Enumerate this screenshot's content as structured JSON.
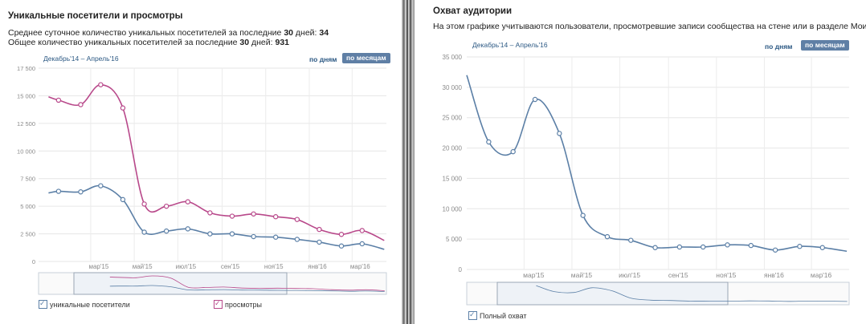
{
  "left": {
    "title": "Уникальные посетители и просмотры",
    "stat1_label": "Среднее суточное количество уникальных посетителей за последние",
    "stat1_days": "30",
    "stat1_suffix": "дней:",
    "stat1_value": "34",
    "stat2_label": "Общее количество уникальных посетителей за последние",
    "stat2_days": "30",
    "stat2_suffix": "дней:",
    "stat2_value": "931",
    "date_range": "Декабрь'14 – Апрель'16",
    "btn_days": "по дням",
    "btn_months": "по месяцам",
    "legend_unique": "уникальные посетители",
    "legend_views": "просмотры"
  },
  "right": {
    "title": "Охват аудитории",
    "description": "На этом графике учитываются пользователи, просмотревшие записи сообщества на стене или в разделе Мои Новости.",
    "date_range": "Декабрь'14 – Апрель'16",
    "btn_days": "по дням",
    "btn_months": "по месяцам",
    "legend_reach": "Полный охват"
  },
  "colors": {
    "blue": "#5b7fa6",
    "magenta": "#b8488a",
    "grid": "#e5e5e5",
    "link": "#2b5883",
    "active_btn": "#5f7fa5"
  },
  "chart_data": [
    {
      "type": "line",
      "title": "Уникальные посетители и просмотры",
      "x_tick_labels": [
        "мар'15",
        "май'15",
        "июл'15",
        "сен'15",
        "ноя'15",
        "янв'16",
        "мар'16"
      ],
      "y_tick_labels": [
        "0",
        "2 500",
        "5 000",
        "7 500",
        "10 000",
        "12 500",
        "15 000",
        "17 500"
      ],
      "ylim": [
        0,
        17500
      ],
      "grid": true,
      "legend": "bottom-left",
      "series": [
        {
          "name": "уникальные посетители",
          "color": "#5b7fa6",
          "points": [
            {
              "x": "2015-01-01",
              "y": 6200
            },
            {
              "x": "2015-01-15",
              "y": 6350
            },
            {
              "x": "2015-02-15",
              "y": 6300
            },
            {
              "x": "2015-03-15",
              "y": 6850
            },
            {
              "x": "2015-04-15",
              "y": 5600
            },
            {
              "x": "2015-05-15",
              "y": 2650
            },
            {
              "x": "2015-06-15",
              "y": 2750
            },
            {
              "x": "2015-07-15",
              "y": 2950
            },
            {
              "x": "2015-08-15",
              "y": 2500
            },
            {
              "x": "2015-09-15",
              "y": 2500
            },
            {
              "x": "2015-10-15",
              "y": 2250
            },
            {
              "x": "2015-11-15",
              "y": 2200
            },
            {
              "x": "2015-12-15",
              "y": 2000
            },
            {
              "x": "2016-01-15",
              "y": 1750
            },
            {
              "x": "2016-02-15",
              "y": 1400
            },
            {
              "x": "2016-03-15",
              "y": 1600
            },
            {
              "x": "2016-04-15",
              "y": 1100
            }
          ],
          "markers": [
            "2015-01-15",
            "2015-02-15",
            "2015-03-15",
            "2015-04-15",
            "2015-05-15",
            "2015-06-15",
            "2015-07-15",
            "2015-08-15",
            "2015-09-15",
            "2015-10-15",
            "2015-11-15",
            "2015-12-15",
            "2016-01-15",
            "2016-02-15",
            "2016-03-15"
          ]
        },
        {
          "name": "просмотры",
          "color": "#b8488a",
          "points": [
            {
              "x": "2015-01-01",
              "y": 14900
            },
            {
              "x": "2015-01-15",
              "y": 14600
            },
            {
              "x": "2015-02-15",
              "y": 14200
            },
            {
              "x": "2015-03-15",
              "y": 16000
            },
            {
              "x": "2015-04-15",
              "y": 13900
            },
            {
              "x": "2015-05-15",
              "y": 5200
            },
            {
              "x": "2015-06-15",
              "y": 5000
            },
            {
              "x": "2015-07-15",
              "y": 5400
            },
            {
              "x": "2015-08-15",
              "y": 4400
            },
            {
              "x": "2015-09-15",
              "y": 4100
            },
            {
              "x": "2015-10-15",
              "y": 4300
            },
            {
              "x": "2015-11-15",
              "y": 4050
            },
            {
              "x": "2015-12-15",
              "y": 3800
            },
            {
              "x": "2016-01-15",
              "y": 2900
            },
            {
              "x": "2016-02-15",
              "y": 2450
            },
            {
              "x": "2016-03-15",
              "y": 2800
            },
            {
              "x": "2016-04-15",
              "y": 1900
            }
          ],
          "markers": [
            "2015-01-15",
            "2015-02-15",
            "2015-03-15",
            "2015-04-15",
            "2015-05-15",
            "2015-06-15",
            "2015-07-15",
            "2015-08-15",
            "2015-09-15",
            "2015-10-15",
            "2015-11-15",
            "2015-12-15",
            "2016-01-15",
            "2016-02-15",
            "2016-03-15"
          ]
        }
      ]
    },
    {
      "type": "line",
      "title": "Охват аудитории",
      "x_tick_labels": [
        "мар'15",
        "май'15",
        "июл'15",
        "сен'15",
        "ноя'15",
        "янв'16",
        "мар'16"
      ],
      "y_tick_labels": [
        "0",
        "5 000",
        "10 000",
        "15 000",
        "20 000",
        "25 000",
        "30 000",
        "35 000"
      ],
      "ylim": [
        0,
        35000
      ],
      "grid": true,
      "legend": "bottom-left",
      "series": [
        {
          "name": "Полный охват",
          "color": "#5b7fa6",
          "points": [
            {
              "x": "2014-12-18",
              "y": 32000
            },
            {
              "x": "2015-01-15",
              "y": 21000
            },
            {
              "x": "2015-02-15",
              "y": 19400
            },
            {
              "x": "2015-03-15",
              "y": 28000
            },
            {
              "x": "2015-04-15",
              "y": 22400
            },
            {
              "x": "2015-05-15",
              "y": 8900
            },
            {
              "x": "2015-06-15",
              "y": 5400
            },
            {
              "x": "2015-07-15",
              "y": 4800
            },
            {
              "x": "2015-08-15",
              "y": 3600
            },
            {
              "x": "2015-09-15",
              "y": 3700
            },
            {
              "x": "2015-10-15",
              "y": 3700
            },
            {
              "x": "2015-11-15",
              "y": 4050
            },
            {
              "x": "2015-12-15",
              "y": 3950
            },
            {
              "x": "2016-01-15",
              "y": 3200
            },
            {
              "x": "2016-02-15",
              "y": 3800
            },
            {
              "x": "2016-03-15",
              "y": 3600
            },
            {
              "x": "2016-04-15",
              "y": 3000
            }
          ],
          "markers": [
            "2015-01-15",
            "2015-02-15",
            "2015-03-15",
            "2015-04-15",
            "2015-05-15",
            "2015-06-15",
            "2015-07-15",
            "2015-08-15",
            "2015-09-15",
            "2015-10-15",
            "2015-11-15",
            "2015-12-15",
            "2016-01-15",
            "2016-02-15",
            "2016-03-15"
          ]
        }
      ]
    }
  ]
}
